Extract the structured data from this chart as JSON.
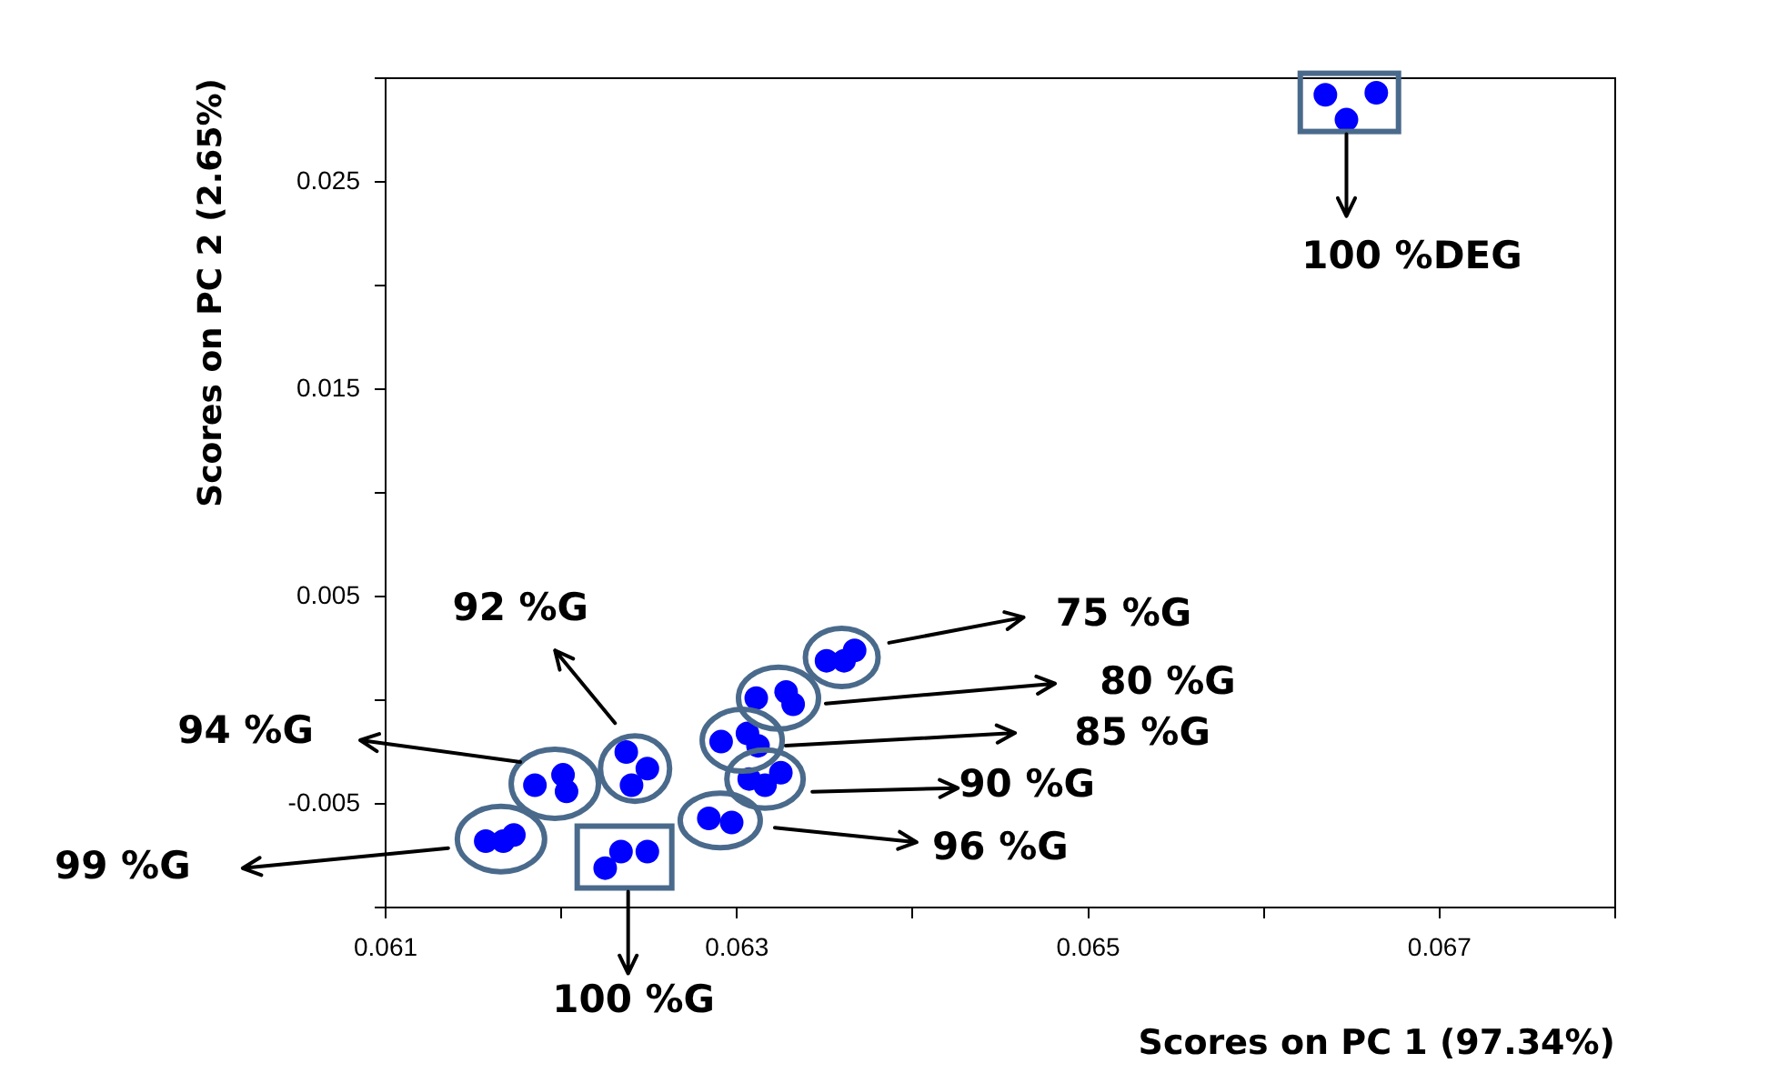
{
  "chart_data": {
    "type": "scatter",
    "xlabel": "Scores on PC 1 (97.34%)",
    "ylabel": "Scores on PC 2 (2.65%)",
    "x": [
      0.06635,
      0.06664,
      0.06647,
      0.06351,
      0.06361,
      0.06367,
      0.06311,
      0.06328,
      0.06332,
      0.06291,
      0.06306,
      0.06312,
      0.06307,
      0.06316,
      0.06325,
      0.06284,
      0.06297,
      0.06237,
      0.06249,
      0.0624,
      0.06185,
      0.06201,
      0.06203,
      0.06157,
      0.06167,
      0.06173,
      0.06225,
      0.06234,
      0.06249
    ],
    "values": [
      0.0292,
      0.0293,
      0.028,
      0.0019,
      0.0019,
      0.0024,
      0.0001,
      0.0004,
      -0.0002,
      -0.002,
      -0.0016,
      -0.0022,
      -0.0038,
      -0.0041,
      -0.0035,
      -0.0057,
      -0.0059,
      -0.0025,
      -0.0033,
      -0.0041,
      -0.0041,
      -0.0036,
      -0.0044,
      -0.0068,
      -0.0068,
      -0.0065,
      -0.0081,
      -0.0073,
      -0.0073
    ],
    "color": "#0000ff",
    "marker": "circle",
    "grid": false,
    "legend": false,
    "xlim": [
      0.061,
      0.068
    ],
    "xticks": [
      0.061,
      {
        "value": 0.062,
        "label": null
      },
      0.063,
      {
        "value": 0.064,
        "label": null
      },
      0.065,
      {
        "value": 0.066,
        "label": null
      },
      0.067,
      {
        "value": 0.068,
        "label": null
      }
    ],
    "ylim": [
      -0.01,
      0.03
    ],
    "yticks": [
      {
        "value": -0.01,
        "label": null
      },
      -0.005,
      {
        "value": 0,
        "label": null
      },
      0.005,
      {
        "value": 0.01,
        "label": null
      },
      0.015,
      {
        "value": 0.02,
        "label": null
      },
      0.025,
      {
        "value": 0.03,
        "label": null
      }
    ],
    "annotations": [
      {
        "text": "100 %DEG",
        "x": 0.06647,
        "y": 0.028
      },
      "75 %G",
      "80 %G",
      "85 %G",
      "90 %G",
      "96 %G",
      "92 %G",
      "94 %G",
      "99 %G",
      "100 %G"
    ]
  }
}
